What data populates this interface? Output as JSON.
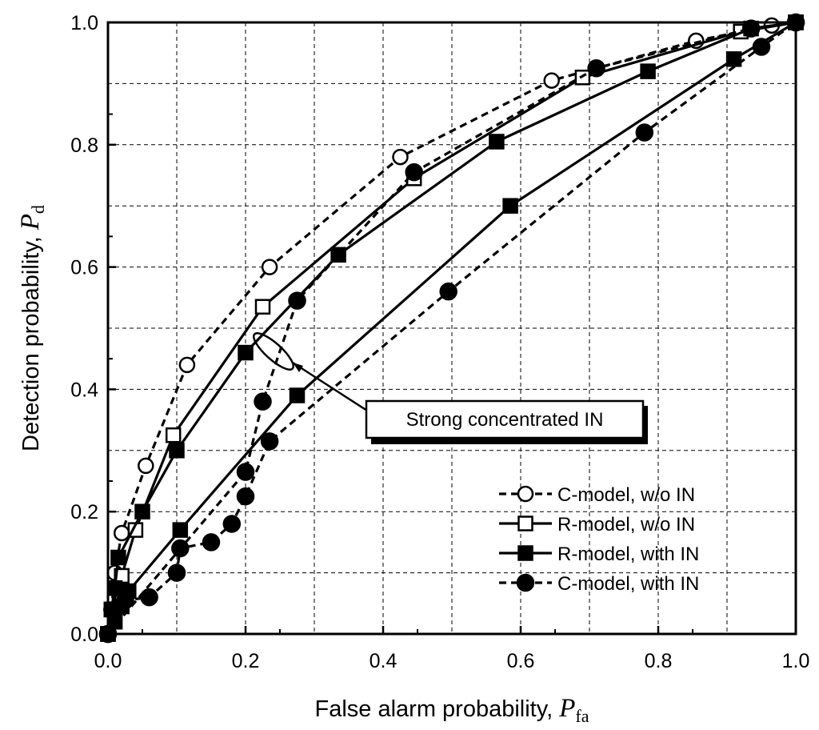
{
  "chart_data": {
    "type": "line",
    "xlabel": "False alarm probability, ",
    "xlabel_symbol": "P",
    "xlabel_subscript": "fa",
    "ylabel": "Detection probability, ",
    "ylabel_symbol": "P",
    "ylabel_subscript": "d",
    "xlim": [
      0.0,
      1.0
    ],
    "ylim": [
      0.0,
      1.0
    ],
    "x_ticks": [
      "0.0",
      "0.2",
      "0.4",
      "0.6",
      "0.8",
      "1.0"
    ],
    "y_ticks": [
      "0.0",
      "0.2",
      "0.4",
      "0.6",
      "0.8",
      "1.0"
    ],
    "grid": true,
    "legend_position": "bottom-right",
    "annotation": "Strong concentrated IN",
    "series": [
      {
        "name": "C-model, w/o IN",
        "line": "dashed",
        "marker": "open-circle",
        "x": [
          0.0,
          0.005,
          0.01,
          0.02,
          0.055,
          0.115,
          0.235,
          0.425,
          0.645,
          0.855,
          0.965,
          1.0
        ],
        "y": [
          0.0,
          0.04,
          0.1,
          0.165,
          0.275,
          0.44,
          0.6,
          0.78,
          0.905,
          0.97,
          0.995,
          1.0
        ]
      },
      {
        "name": "R-model, w/o IN",
        "line": "solid",
        "marker": "open-square",
        "x": [
          0.0,
          0.005,
          0.02,
          0.04,
          0.095,
          0.225,
          0.445,
          0.69,
          0.92,
          1.0
        ],
        "y": [
          0.0,
          0.04,
          0.095,
          0.17,
          0.325,
          0.535,
          0.745,
          0.91,
          0.985,
          1.0
        ]
      },
      {
        "name": "R-model, with IN",
        "line": "solid",
        "marker": "filled-square",
        "x": [
          0.0,
          0.005,
          0.01,
          0.015,
          0.05,
          0.1,
          0.2,
          0.335,
          0.565,
          0.785,
          0.935,
          1.0
        ],
        "y": [
          0.0,
          0.04,
          0.075,
          0.125,
          0.2,
          0.3,
          0.46,
          0.62,
          0.805,
          0.92,
          0.99,
          1.0
        ]
      },
      {
        "name": "R-model, with IN",
        "line": "solid",
        "marker": "filled-square",
        "x": [
          0.0,
          0.01,
          0.02,
          0.03,
          0.105,
          0.275,
          0.585,
          0.91,
          1.0
        ],
        "y": [
          0.0,
          0.02,
          0.045,
          0.07,
          0.17,
          0.39,
          0.7,
          0.94,
          1.0
        ]
      },
      {
        "name": "C-model, with IN",
        "line": "dashed",
        "marker": "filled-circle",
        "x": [
          0.0,
          0.2,
          0.225,
          0.275,
          0.445,
          0.71,
          0.935,
          1.0
        ],
        "y": [
          0.0,
          0.265,
          0.38,
          0.545,
          0.755,
          0.925,
          0.99,
          1.0
        ]
      },
      {
        "name": "C-model, with IN",
        "line": "dashed",
        "marker": "filled-circle",
        "x": [
          0.0,
          0.025,
          0.06,
          0.1,
          0.105,
          0.15,
          0.18,
          0.2,
          0.235,
          0.495,
          0.78,
          0.95,
          1.0
        ],
        "y": [
          0.0,
          0.055,
          0.06,
          0.1,
          0.14,
          0.15,
          0.18,
          0.225,
          0.315,
          0.56,
          0.82,
          0.96,
          1.0
        ]
      }
    ],
    "legend": [
      {
        "label": "C-model, w/o IN",
        "line": "dashed",
        "marker": "open-circle"
      },
      {
        "label": "R-model, w/o IN",
        "line": "solid",
        "marker": "open-square"
      },
      {
        "label": "R-model, with IN",
        "line": "solid",
        "marker": "filled-square"
      },
      {
        "label": "C-model, with IN",
        "line": "dashed",
        "marker": "filled-circle"
      }
    ]
  }
}
